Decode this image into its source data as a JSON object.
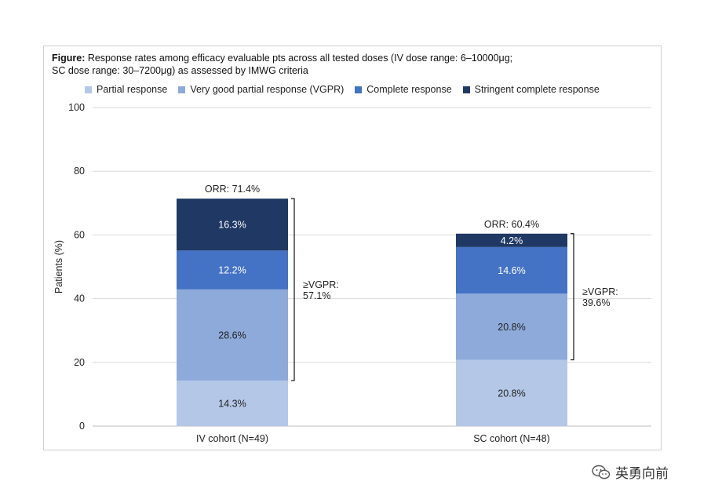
{
  "caption": {
    "label": "Figure:",
    "text_line1": " Response rates among efficacy evaluable pts across all tested doses (IV dose range: 6–10000μg;",
    "text_line2": "SC dose range: 30–7200μg) as assessed by IMWG criteria"
  },
  "watermark": {
    "text": "英勇向前"
  },
  "chart_data": {
    "type": "bar",
    "stacked": true,
    "ylabel": "Patients (%)",
    "ylim": [
      0,
      100
    ],
    "yticks": [
      0,
      20,
      40,
      60,
      80,
      100
    ],
    "grid": true,
    "legend_position": "top",
    "categories": [
      "IV cohort (N=49)",
      "SC cohort (N=48)"
    ],
    "series": [
      {
        "name": "Partial response",
        "color": "#b4c7e7",
        "values": [
          14.3,
          20.8
        ],
        "labels": [
          "14.3%",
          "20.8%"
        ],
        "label_color": "#222222"
      },
      {
        "name": "Very good partial response (VGPR)",
        "color": "#8eaadb",
        "values": [
          28.6,
          20.8
        ],
        "labels": [
          "28.6%",
          "20.8%"
        ],
        "label_color": "#222222"
      },
      {
        "name": "Complete response",
        "color": "#4472c4",
        "values": [
          12.2,
          14.6
        ],
        "labels": [
          "12.2%",
          "14.6%"
        ],
        "label_color": "#ffffff"
      },
      {
        "name": "Stringent complete response",
        "color": "#203864",
        "values": [
          16.3,
          4.2
        ],
        "labels": [
          "16.3%",
          "4.2%"
        ],
        "label_color": "#ffffff"
      }
    ],
    "totals": [
      {
        "text": "ORR: 71.4%",
        "value": 71.4
      },
      {
        "text": "ORR: 60.4%",
        "value": 60.4
      }
    ],
    "brackets": [
      {
        "line1": "≥VGPR:",
        "line2": "57.1%",
        "from": 14.3,
        "to": 71.4
      },
      {
        "line1": "≥VGPR:",
        "line2": "39.6%",
        "from": 20.8,
        "to": 60.4
      }
    ]
  }
}
